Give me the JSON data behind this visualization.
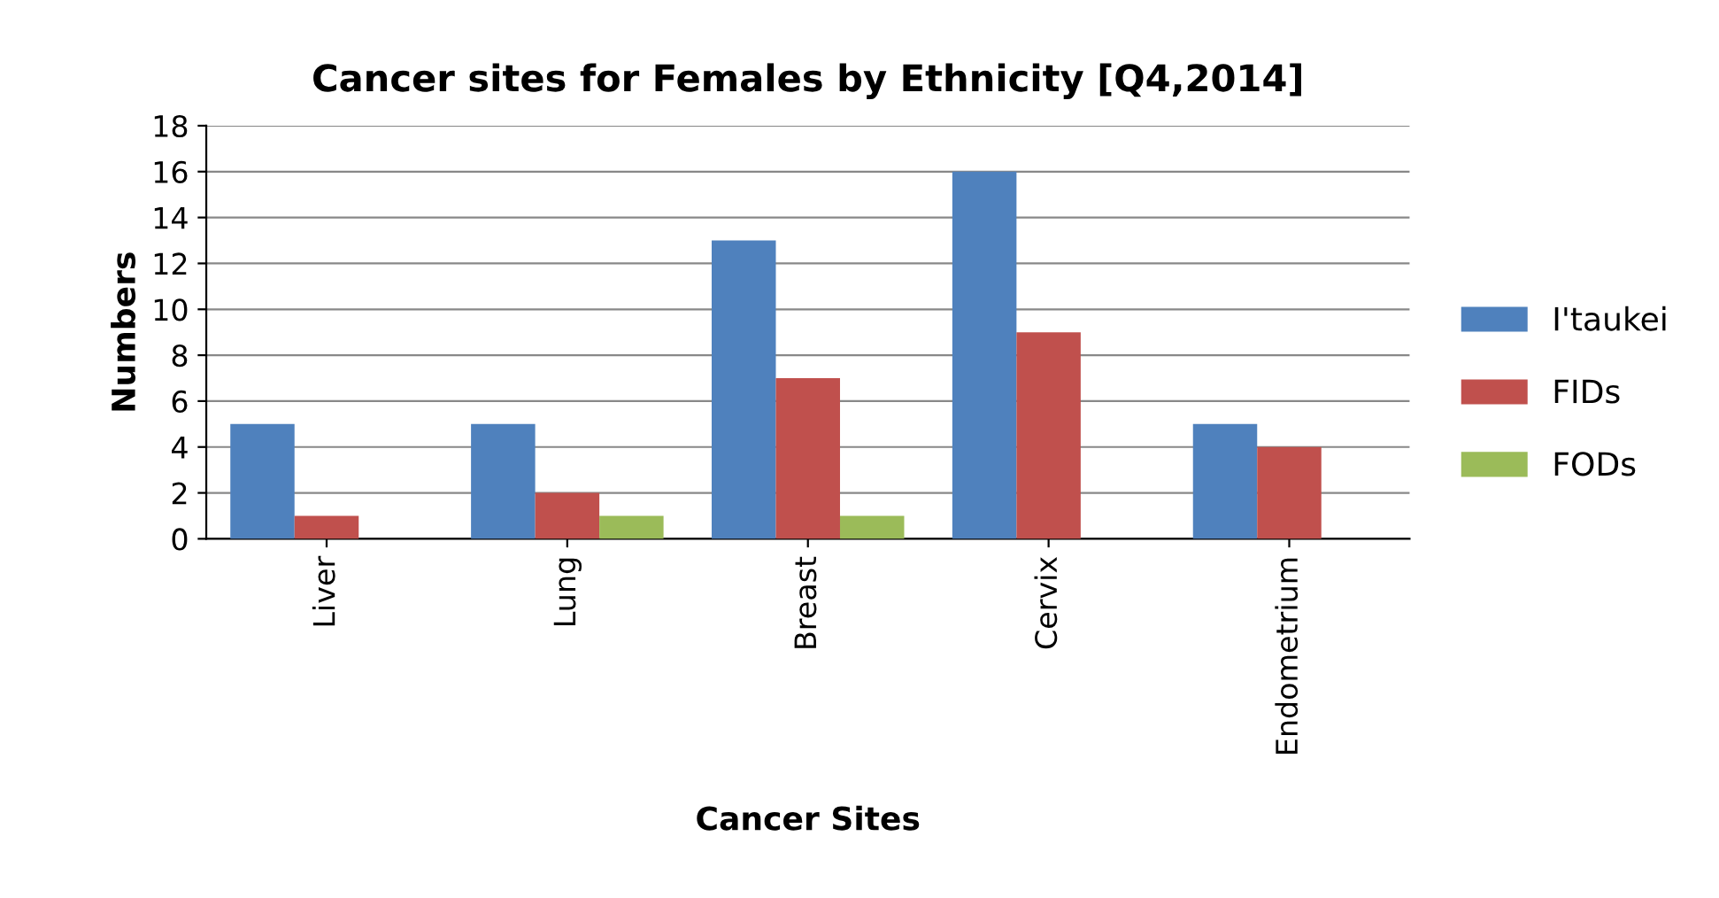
{
  "chart_data": {
    "type": "bar",
    "title": "Cancer sites for Females by Ethnicity [Q4,2014]",
    "xlabel": "Cancer Sites",
    "ylabel": "Numbers",
    "categories": [
      "Liver",
      "Lung",
      "Breast",
      "Cervix",
      "Endometrium"
    ],
    "series": [
      {
        "name": "I'taukei",
        "color": "#4f81bd",
        "values": [
          5,
          5,
          13,
          16,
          5
        ]
      },
      {
        "name": "FIDs",
        "color": "#c0504d",
        "values": [
          1,
          2,
          7,
          9,
          4
        ]
      },
      {
        "name": "FODs",
        "color": "#9bbb59",
        "values": [
          0,
          1,
          1,
          0,
          0
        ]
      }
    ],
    "ylim": [
      0,
      18
    ],
    "yticks": [
      0,
      2,
      4,
      6,
      8,
      10,
      12,
      14,
      16,
      18
    ],
    "grid": "y",
    "legend": "right"
  }
}
